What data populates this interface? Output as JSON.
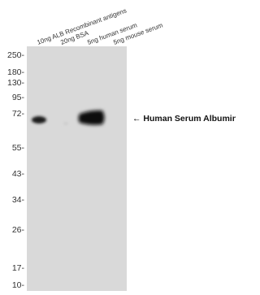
{
  "lanes": [
    "10ng ALB Recombinant antigens",
    "20ng BSA",
    "5ng human serum",
    "5ng mouse serum"
  ],
  "markers": [
    "250-",
    "180-",
    "130-",
    "95-",
    "72-",
    "55-",
    "43-",
    "34-",
    "26-",
    "17-",
    "10-"
  ],
  "annotation": "← Human Serum Albumin"
}
